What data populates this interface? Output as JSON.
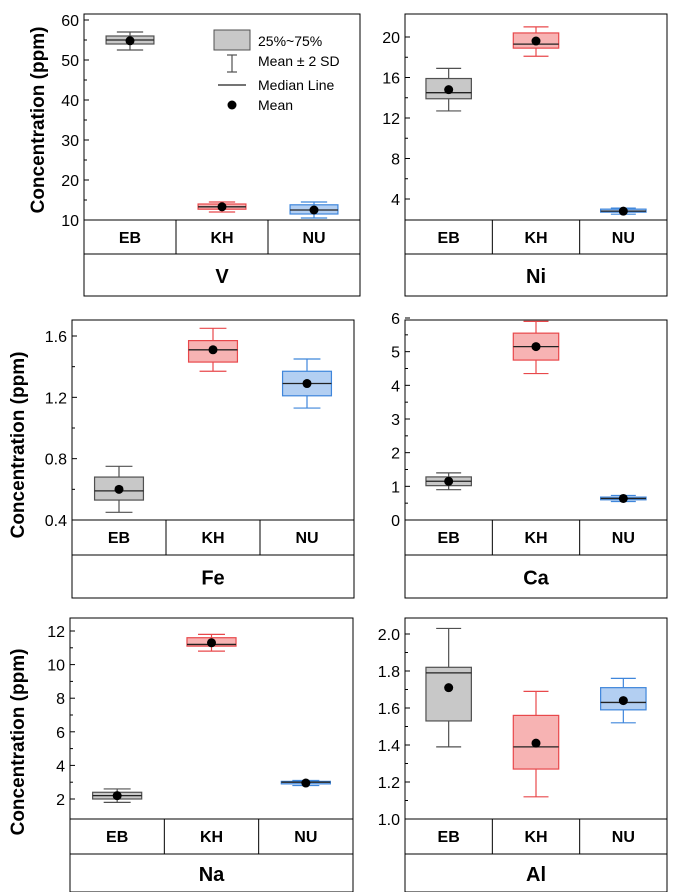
{
  "colors": {
    "EB": {
      "fill": "#c8c8c8",
      "stroke": "#505050"
    },
    "KH": {
      "fill": "#f7b3b3",
      "stroke": "#e8484b"
    },
    "NU": {
      "fill": "#b3cff2",
      "stroke": "#3f86db"
    },
    "median": "#222222",
    "mean_dot": "#000000"
  },
  "legend": {
    "box_label": "25%~75%",
    "whisker_label": "Mean ± 2 SD",
    "median_label": "Median Line",
    "mean_label": "Mean"
  },
  "chart_data": [
    {
      "type": "box",
      "element": "V",
      "ylabel": "Concentration (ppm)",
      "categories": [
        "EB",
        "KH",
        "NU"
      ],
      "ylim": [
        10,
        60
      ],
      "yticks": [
        10,
        20,
        30,
        40,
        50,
        60
      ],
      "boxes": [
        {
          "name": "EB",
          "whisker_low": 52.5,
          "q1": 54.0,
          "median": 55.0,
          "q3": 56.0,
          "whisker_high": 57.0,
          "mean": 54.8
        },
        {
          "name": "KH",
          "whisker_low": 12.0,
          "q1": 12.7,
          "median": 13.3,
          "q3": 14.0,
          "whisker_high": 14.5,
          "mean": 13.3
        },
        {
          "name": "NU",
          "whisker_low": 10.5,
          "q1": 11.5,
          "median": 12.5,
          "q3": 13.8,
          "whisker_high": 14.5,
          "mean": 12.5
        }
      ]
    },
    {
      "type": "box",
      "element": "Ni",
      "ylabel": "",
      "categories": [
        "EB",
        "KH",
        "NU"
      ],
      "ylim": [
        2,
        21
      ],
      "yticks": [
        4,
        8,
        12,
        16,
        20
      ],
      "boxes": [
        {
          "name": "EB",
          "whisker_low": 12.7,
          "q1": 13.9,
          "median": 14.5,
          "q3": 15.9,
          "whisker_high": 16.9,
          "mean": 14.8
        },
        {
          "name": "KH",
          "whisker_low": 18.1,
          "q1": 18.9,
          "median": 19.3,
          "q3": 20.4,
          "whisker_high": 21.0,
          "mean": 19.6
        },
        {
          "name": "NU",
          "whisker_low": 2.5,
          "q1": 2.7,
          "median": 2.8,
          "q3": 3.0,
          "whisker_high": 3.1,
          "mean": 2.8
        }
      ]
    },
    {
      "type": "box",
      "element": "Fe",
      "ylabel": "Concentration (ppm)",
      "categories": [
        "EB",
        "KH",
        "NU"
      ],
      "ylim": [
        0.4,
        1.7
      ],
      "yticks": [
        0.4,
        0.8,
        1.2,
        1.6
      ],
      "boxes": [
        {
          "name": "EB",
          "whisker_low": 0.45,
          "q1": 0.53,
          "median": 0.59,
          "q3": 0.68,
          "whisker_high": 0.75,
          "mean": 0.6
        },
        {
          "name": "KH",
          "whisker_low": 1.37,
          "q1": 1.43,
          "median": 1.51,
          "q3": 1.57,
          "whisker_high": 1.65,
          "mean": 1.51
        },
        {
          "name": "NU",
          "whisker_low": 1.13,
          "q1": 1.21,
          "median": 1.29,
          "q3": 1.37,
          "whisker_high": 1.45,
          "mean": 1.29
        }
      ]
    },
    {
      "type": "box",
      "element": "Ca",
      "ylabel": "",
      "categories": [
        "EB",
        "KH",
        "NU"
      ],
      "ylim": [
        0,
        6
      ],
      "yticks": [
        0,
        1,
        2,
        3,
        4,
        5,
        6
      ],
      "boxes": [
        {
          "name": "EB",
          "whisker_low": 0.9,
          "q1": 1.02,
          "median": 1.15,
          "q3": 1.28,
          "whisker_high": 1.4,
          "mean": 1.15
        },
        {
          "name": "KH",
          "whisker_low": 4.35,
          "q1": 4.75,
          "median": 5.15,
          "q3": 5.55,
          "whisker_high": 5.9,
          "mean": 5.15
        },
        {
          "name": "NU",
          "whisker_low": 0.55,
          "q1": 0.6,
          "median": 0.64,
          "q3": 0.68,
          "whisker_high": 0.73,
          "mean": 0.64
        }
      ]
    },
    {
      "type": "box",
      "element": "Na",
      "ylabel": "Concentration (ppm)",
      "categories": [
        "EB",
        "KH",
        "NU"
      ],
      "ylim": [
        1,
        12.8
      ],
      "yticks": [
        2,
        4,
        6,
        8,
        10,
        12
      ],
      "boxes": [
        {
          "name": "EB",
          "whisker_low": 1.8,
          "q1": 2.0,
          "median": 2.2,
          "q3": 2.4,
          "whisker_high": 2.6,
          "mean": 2.2
        },
        {
          "name": "KH",
          "whisker_low": 10.8,
          "q1": 11.1,
          "median": 11.2,
          "q3": 11.6,
          "whisker_high": 11.8,
          "mean": 11.3
        },
        {
          "name": "NU",
          "whisker_low": 2.8,
          "q1": 2.9,
          "median": 3.0,
          "q3": 3.05,
          "whisker_high": 3.1,
          "mean": 2.95
        }
      ]
    },
    {
      "type": "box",
      "element": "Al",
      "ylabel": "",
      "categories": [
        "EB",
        "KH",
        "NU"
      ],
      "ylim": [
        1.0,
        2.1
      ],
      "yticks": [
        1.0,
        1.2,
        1.4,
        1.6,
        1.8,
        2.0
      ],
      "boxes": [
        {
          "name": "EB",
          "whisker_low": 1.39,
          "q1": 1.53,
          "median": 1.79,
          "q3": 1.82,
          "whisker_high": 2.03,
          "mean": 1.71
        },
        {
          "name": "KH",
          "whisker_low": 1.12,
          "q1": 1.27,
          "median": 1.39,
          "q3": 1.56,
          "whisker_high": 1.69,
          "mean": 1.41
        },
        {
          "name": "NU",
          "whisker_low": 1.52,
          "q1": 1.59,
          "median": 1.63,
          "q3": 1.71,
          "whisker_high": 1.76,
          "mean": 1.64
        }
      ]
    }
  ]
}
